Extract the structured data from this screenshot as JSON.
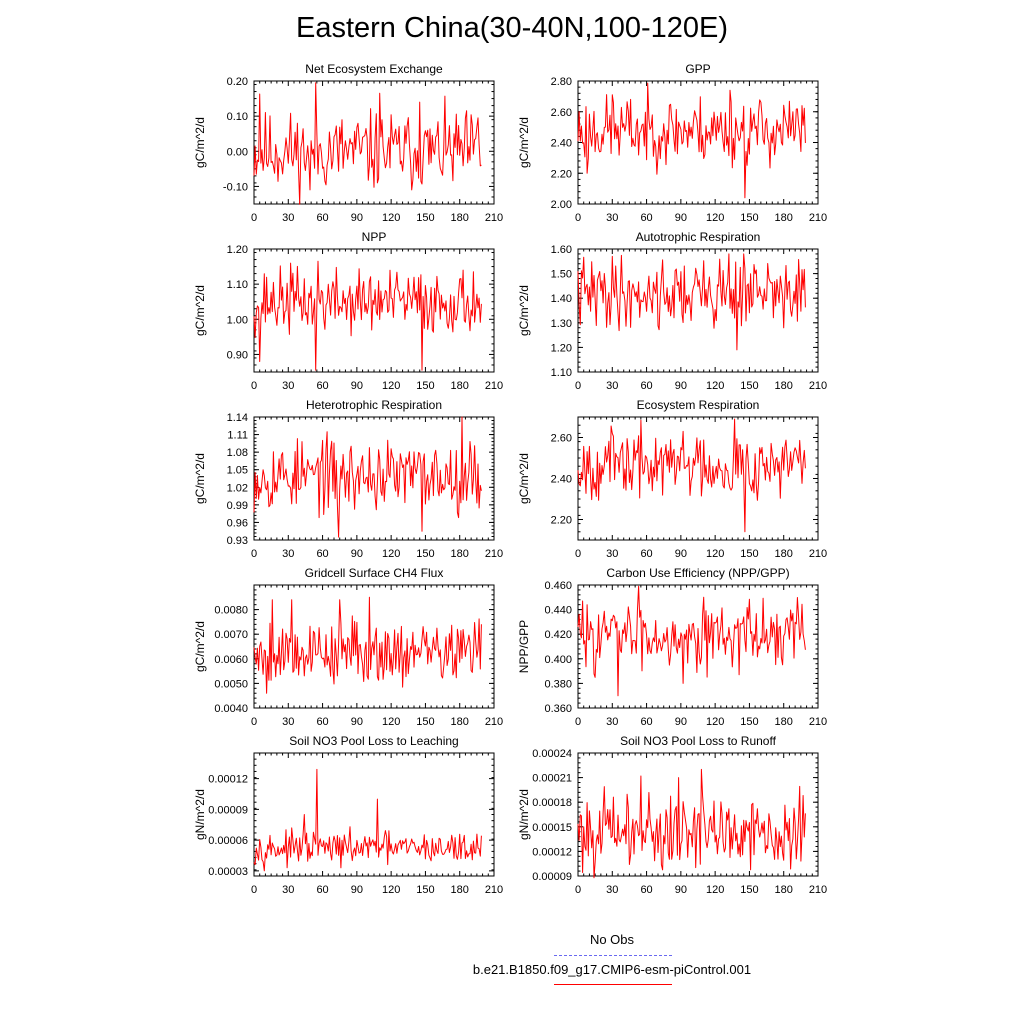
{
  "page": {
    "title": "Eastern China(30-40N,100-120E)",
    "legend": [
      {
        "label": "No Obs",
        "color": "#6a6af0",
        "style": "dashed"
      },
      {
        "label": "b.e21.B1850.f09_g17.CMIP6-esm-piControl.001",
        "color": "#ff0000",
        "style": "solid"
      }
    ]
  },
  "chart_data": [
    {
      "type": "line",
      "title": "Net Ecosystem Exchange",
      "ylabel": "gC/m^2/d",
      "xlim": [
        0,
        210
      ],
      "ylim": [
        -0.15,
        0.2
      ],
      "xticks": [
        0,
        30,
        60,
        90,
        120,
        150,
        180,
        210
      ],
      "yticks": [
        {
          "v": -0.1,
          "label": "-0.10"
        },
        {
          "v": 0.0,
          "label": "0.00"
        },
        {
          "v": 0.1,
          "label": "0.10"
        },
        {
          "v": 0.2,
          "label": "0.20"
        }
      ],
      "color": "#ff0000",
      "n": 200,
      "seed": 11,
      "mean": 0.0,
      "amp": 0.055,
      "spikes": [
        [
          5,
          0.163
        ],
        [
          54,
          0.195
        ],
        [
          49,
          -0.11
        ],
        [
          110,
          0.165
        ],
        [
          145,
          0.14
        ],
        [
          196,
          0.095
        ]
      ]
    },
    {
      "type": "line",
      "title": "GPP",
      "ylabel": "gC/m^2/d",
      "xlim": [
        0,
        210
      ],
      "ylim": [
        2.0,
        2.8
      ],
      "xticks": [
        0,
        30,
        60,
        90,
        120,
        150,
        180,
        210
      ],
      "yticks": [
        {
          "v": 2.0,
          "label": "2.00"
        },
        {
          "v": 2.2,
          "label": "2.20"
        },
        {
          "v": 2.4,
          "label": "2.40"
        },
        {
          "v": 2.6,
          "label": "2.60"
        },
        {
          "v": 2.8,
          "label": "2.80"
        }
      ],
      "color": "#ff0000",
      "n": 200,
      "seed": 23,
      "mean": 2.48,
      "amp": 0.11,
      "spikes": [
        [
          146,
          2.04
        ],
        [
          133,
          2.74
        ],
        [
          8,
          2.2
        ],
        [
          30,
          2.71
        ]
      ]
    },
    {
      "type": "line",
      "title": "NPP",
      "ylabel": "gC/m^2/d",
      "xlim": [
        0,
        210
      ],
      "ylim": [
        0.85,
        1.2
      ],
      "xticks": [
        0,
        30,
        60,
        90,
        120,
        150,
        180,
        210
      ],
      "yticks": [
        {
          "v": 0.9,
          "label": "0.90"
        },
        {
          "v": 1.0,
          "label": "1.00"
        },
        {
          "v": 1.1,
          "label": "1.10"
        },
        {
          "v": 1.2,
          "label": "1.20"
        }
      ],
      "color": "#ff0000",
      "n": 200,
      "seed": 37,
      "mean": 1.05,
      "amp": 0.045,
      "spikes": [
        [
          5,
          0.88
        ],
        [
          54,
          0.855
        ],
        [
          147,
          0.855
        ],
        [
          32,
          1.16
        ],
        [
          56,
          1.165
        ]
      ]
    },
    {
      "type": "line",
      "title": "Autotrophic Respiration",
      "ylabel": "gC/m^2/d",
      "xlim": [
        0,
        210
      ],
      "ylim": [
        1.1,
        1.6
      ],
      "xticks": [
        0,
        30,
        60,
        90,
        120,
        150,
        180,
        210
      ],
      "yticks": [
        {
          "v": 1.1,
          "label": "1.10"
        },
        {
          "v": 1.2,
          "label": "1.20"
        },
        {
          "v": 1.3,
          "label": "1.30"
        },
        {
          "v": 1.4,
          "label": "1.40"
        },
        {
          "v": 1.5,
          "label": "1.50"
        },
        {
          "v": 1.6,
          "label": "1.60"
        }
      ],
      "color": "#ff0000",
      "n": 200,
      "seed": 41,
      "mean": 1.42,
      "amp": 0.07,
      "spikes": [
        [
          139,
          1.19
        ],
        [
          132,
          1.58
        ],
        [
          30,
          1.57
        ],
        [
          145,
          1.58
        ]
      ]
    },
    {
      "type": "line",
      "title": "Heterotrophic Respiration",
      "ylabel": "gC/m^2/d",
      "xlim": [
        0,
        210
      ],
      "ylim": [
        0.93,
        1.14
      ],
      "xticks": [
        0,
        30,
        60,
        90,
        120,
        150,
        180,
        210
      ],
      "yticks": [
        {
          "v": 0.93,
          "label": "0.93"
        },
        {
          "v": 0.96,
          "label": "0.96"
        },
        {
          "v": 0.99,
          "label": "0.99"
        },
        {
          "v": 1.02,
          "label": "1.02"
        },
        {
          "v": 1.05,
          "label": "1.05"
        },
        {
          "v": 1.08,
          "label": "1.08"
        },
        {
          "v": 1.11,
          "label": "1.11"
        },
        {
          "v": 1.14,
          "label": "1.14"
        }
      ],
      "color": "#ff0000",
      "n": 200,
      "seed": 53,
      "mean": 1.04,
      "amp": 0.03,
      "spikes": [
        [
          182,
          1.14
        ],
        [
          74,
          0.935
        ],
        [
          147,
          0.945
        ],
        [
          60,
          1.1
        ]
      ]
    },
    {
      "type": "line",
      "title": "Ecosystem Respiration",
      "ylabel": "gC/m^2/d",
      "xlim": [
        0,
        210
      ],
      "ylim": [
        2.1,
        2.7
      ],
      "xticks": [
        0,
        30,
        60,
        90,
        120,
        150,
        180,
        210
      ],
      "yticks": [
        {
          "v": 2.2,
          "label": "2.20"
        },
        {
          "v": 2.4,
          "label": "2.40"
        },
        {
          "v": 2.6,
          "label": "2.60"
        }
      ],
      "color": "#ff0000",
      "n": 200,
      "seed": 67,
      "mean": 2.47,
      "amp": 0.08,
      "spikes": [
        [
          146,
          2.14
        ],
        [
          137,
          2.69
        ],
        [
          30,
          2.62
        ],
        [
          92,
          2.63
        ]
      ]
    },
    {
      "type": "line",
      "title": "Gridcell Surface CH4 Flux",
      "ylabel": "gC/m^2/d",
      "xlim": [
        0,
        210
      ],
      "ylim": [
        0.004,
        0.009
      ],
      "xticks": [
        0,
        30,
        60,
        90,
        120,
        150,
        180,
        210
      ],
      "yticks": [
        {
          "v": 0.004,
          "label": "0.0040"
        },
        {
          "v": 0.005,
          "label": "0.0050"
        },
        {
          "v": 0.006,
          "label": "0.0060"
        },
        {
          "v": 0.007,
          "label": "0.0070"
        },
        {
          "v": 0.008,
          "label": "0.0080"
        }
      ],
      "color": "#ff0000",
      "n": 200,
      "seed": 79,
      "mean": 0.0063,
      "amp": 0.00065,
      "spikes": [
        [
          16,
          0.0084
        ],
        [
          33,
          0.0084
        ],
        [
          75,
          0.0084
        ],
        [
          101,
          0.0085
        ],
        [
          11,
          0.0046
        ]
      ]
    },
    {
      "type": "line",
      "title": "Carbon Use Efficiency (NPP/GPP)",
      "ylabel": "NPP/GPP",
      "xlim": [
        0,
        210
      ],
      "ylim": [
        0.36,
        0.46
      ],
      "xticks": [
        0,
        30,
        60,
        90,
        120,
        150,
        180,
        210
      ],
      "yticks": [
        {
          "v": 0.36,
          "label": "0.360"
        },
        {
          "v": 0.38,
          "label": "0.380"
        },
        {
          "v": 0.4,
          "label": "0.400"
        },
        {
          "v": 0.42,
          "label": "0.420"
        },
        {
          "v": 0.44,
          "label": "0.440"
        },
        {
          "v": 0.46,
          "label": "0.460"
        }
      ],
      "color": "#ff0000",
      "n": 200,
      "seed": 83,
      "mean": 0.42,
      "amp": 0.013,
      "spikes": [
        [
          53,
          0.459
        ],
        [
          35,
          0.37
        ],
        [
          92,
          0.38
        ],
        [
          110,
          0.45
        ]
      ]
    },
    {
      "type": "line",
      "title": "Soil NO3 Pool Loss to Leaching",
      "ylabel": "gN/m^2/d",
      "xlim": [
        0,
        210
      ],
      "ylim": [
        2.5e-05,
        0.000145
      ],
      "xticks": [
        0,
        30,
        60,
        90,
        120,
        150,
        180,
        210
      ],
      "yticks": [
        {
          "v": 3e-05,
          "label": "0.00003"
        },
        {
          "v": 6e-05,
          "label": "0.00006"
        },
        {
          "v": 9e-05,
          "label": "0.00009"
        },
        {
          "v": 0.00012,
          "label": "0.00012"
        }
      ],
      "color": "#ff0000",
      "n": 200,
      "seed": 97,
      "mean": 5.2e-05,
      "amp": 7.5e-06,
      "spikes": [
        [
          55,
          0.000129
        ],
        [
          108,
          0.0001
        ],
        [
          44,
          8.5e-05
        ],
        [
          76,
          3.3e-05
        ]
      ]
    },
    {
      "type": "line",
      "title": "Soil NO3 Pool Loss to Runoff",
      "ylabel": "gN/m^2/d",
      "xlim": [
        0,
        210
      ],
      "ylim": [
        9e-05,
        0.00024
      ],
      "xticks": [
        0,
        30,
        60,
        90,
        120,
        150,
        180,
        210
      ],
      "yticks": [
        {
          "v": 9e-05,
          "label": "0.00009"
        },
        {
          "v": 0.00012,
          "label": "0.00012"
        },
        {
          "v": 0.00015,
          "label": "0.00015"
        },
        {
          "v": 0.00018,
          "label": "0.00018"
        },
        {
          "v": 0.00021,
          "label": "0.00021"
        },
        {
          "v": 0.00024,
          "label": "0.00024"
        }
      ],
      "color": "#ff0000",
      "n": 200,
      "seed": 101,
      "mean": 0.000145,
      "amp": 0.022,
      "spikes": [
        [
          108,
          0.00022
        ],
        [
          55,
          0.000212
        ],
        [
          88,
          0.00021
        ],
        [
          74,
          9.75e-05
        ],
        [
          186,
          9.85e-05
        ]
      ]
    }
  ]
}
